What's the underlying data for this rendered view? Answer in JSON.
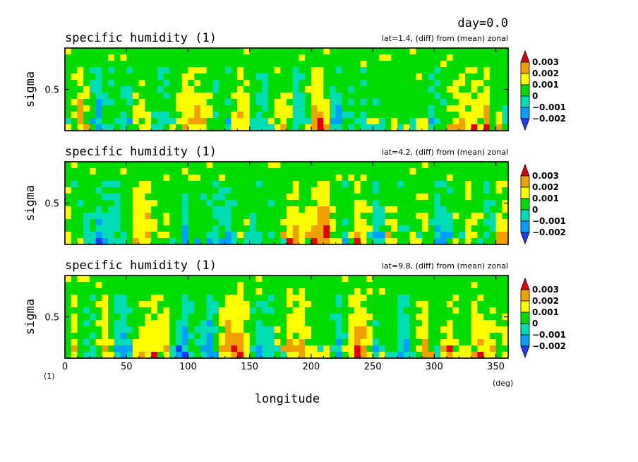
{
  "header": {
    "day_label": "day=0.0"
  },
  "colors": {
    "levels": [
      "#1e3cff",
      "#00a0ff",
      "#00dcb4",
      "#00dc00",
      "#ffff00",
      "#f0a000",
      "#e10000"
    ],
    "frame": "#000000",
    "background": "#ffffff"
  },
  "chart_data": [
    {
      "type": "heatmap",
      "title": "specific humidity (1)",
      "subtitle": "lat=1.4, (diff) from (mean) zonal",
      "ylabel": "sigma",
      "yticks": [
        "0.5"
      ],
      "xlim": [
        0,
        360
      ],
      "ylim": [
        0,
        1
      ],
      "colorbar": {
        "levels": [
          "0.003",
          "0.002",
          "0.001",
          "0",
          "−0.001",
          "−0.002"
        ]
      }
    },
    {
      "type": "heatmap",
      "title": "specific humidity (1)",
      "subtitle": "lat=4.2, (diff) from (mean) zonal",
      "ylabel": "sigma",
      "yticks": [
        "0.5"
      ],
      "xlim": [
        0,
        360
      ],
      "ylim": [
        0,
        1
      ],
      "colorbar": {
        "levels": [
          "0.003",
          "0.002",
          "0.001",
          "0",
          "−0.001",
          "−0.002"
        ]
      }
    },
    {
      "type": "heatmap",
      "title": "specific humidity (1)",
      "subtitle": "lat=9.8, (diff) from (mean) zonal",
      "ylabel": "sigma",
      "yticks": [
        "0.5"
      ],
      "xlim": [
        0,
        360
      ],
      "ylim": [
        0,
        1
      ],
      "colorbar": {
        "levels": [
          "0.003",
          "0.002",
          "0.001",
          "0",
          "−0.001",
          "−0.002"
        ]
      }
    }
  ],
  "xaxis": {
    "label": "longitude",
    "ticks": [
      "0",
      "50",
      "100",
      "150",
      "200",
      "250",
      "300",
      "350"
    ],
    "unit": "(deg)",
    "corner_unit": "(1)"
  }
}
